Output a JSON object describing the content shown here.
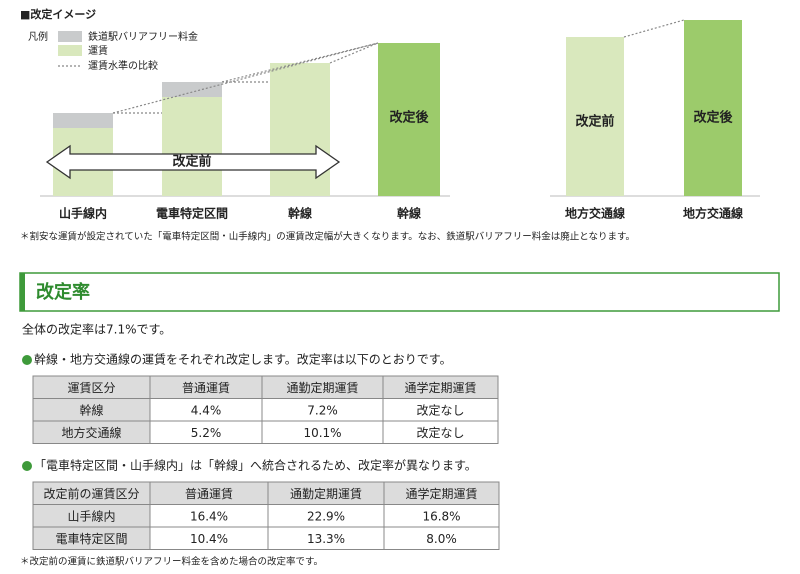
{
  "image": {
    "title": "■改定イメージ",
    "legend": {
      "label": "凡例",
      "items": [
        "鉄道駅バリアフリー料金",
        "運賃",
        "運賃水準の比較"
      ]
    },
    "arrow_label": "改定前",
    "bar_labels": [
      "改定後",
      "改定前",
      "改定後"
    ],
    "x_labels": [
      "山手線内",
      "電車特定区間",
      "幹線",
      "幹線",
      "地方交通線",
      "地方交通線"
    ],
    "note": "＊割安な運賃が設定されていた「電車特定区間・山手線内」の運賃改定幅が大きくなります。なお、鉄道駅バリアフリー料金は廃止となります。"
  },
  "section": {
    "title": "改定率",
    "overall": "全体の改定率は7.1%です。"
  },
  "table1": {
    "caption": "幹線・地方交通線の運賃をそれぞれ改定します。改定率は以下のとおりです。",
    "header": [
      "運賃区分",
      "普通運賃",
      "通勤定期運賃",
      "通学定期運賃"
    ],
    "rows": [
      [
        "幹線",
        "4.4%",
        "7.2%",
        "改定なし"
      ],
      [
        "地方交通線",
        "5.2%",
        "10.1%",
        "改定なし"
      ]
    ]
  },
  "table2": {
    "caption": "「電車特定区間・山手線内」は「幹線」へ統合されるため、改定率が異なります。",
    "header": [
      "改定前の運賃区分",
      "普通運賃",
      "通勤定期運賃",
      "通学定期運賃"
    ],
    "rows": [
      [
        "山手線内",
        "16.4%",
        "22.9%",
        "16.8%"
      ],
      [
        "電車特定区間",
        "10.4%",
        "13.3%",
        "8.0%"
      ]
    ]
  },
  "footnote": "＊改定前の運賃に鉄道駅バリアフリー料金を含めた場合の改定率です。"
}
